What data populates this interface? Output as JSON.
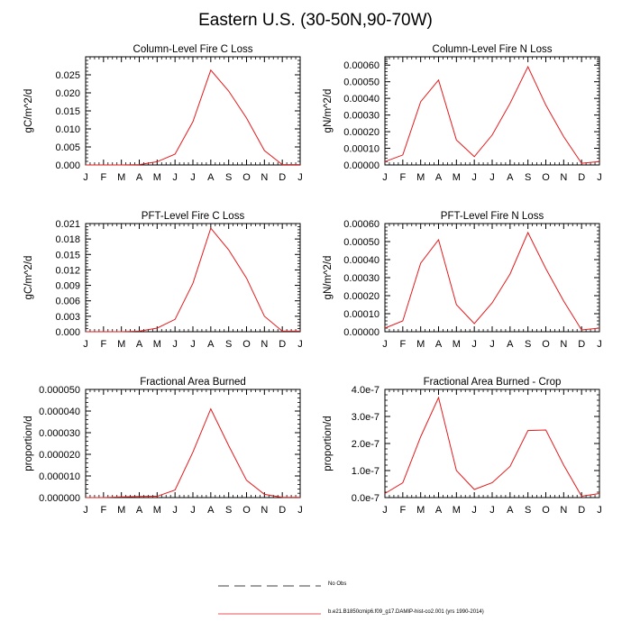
{
  "page_title": "Eastern U.S. (30-50N,90-70W)",
  "colors": {
    "model_line": "#e41a1c",
    "obs_line": "#000000",
    "axis": "#000000"
  },
  "legend": {
    "obs_label": "No Obs",
    "model_label": "b.e21.B1850cmip6.f09_g17.DAMIP-hist-co2.001 (yrs 1990-2014)"
  },
  "chart_data": [
    {
      "type": "line",
      "title": "Column-Level Fire C Loss",
      "ylabel": "gC/m^2/d",
      "x": [
        "J",
        "F",
        "M",
        "A",
        "M",
        "J",
        "J",
        "A",
        "S",
        "O",
        "N",
        "D",
        "J"
      ],
      "ylim": [
        0,
        0.03
      ],
      "yticks": [
        0,
        0.005,
        0.01,
        0.015,
        0.02,
        0.025
      ],
      "ytick_labels": [
        "0.000",
        "0.005",
        "0.010",
        "0.015",
        "0.020",
        "0.025"
      ],
      "series": [
        {
          "values": [
            0,
            0,
            0,
            0.0001,
            0.0009,
            0.003,
            0.012,
            0.0263,
            0.0205,
            0.013,
            0.004,
            0.0001,
            0.0001
          ]
        }
      ]
    },
    {
      "type": "line",
      "title": "Column-Level Fire N Loss",
      "ylabel": "gN/m^2/d",
      "x": [
        "J",
        "F",
        "M",
        "A",
        "M",
        "J",
        "J",
        "A",
        "S",
        "O",
        "N",
        "D",
        "J"
      ],
      "ylim": [
        0,
        0.00065
      ],
      "yticks": [
        0,
        0.0001,
        0.0002,
        0.0003,
        0.0004,
        0.0005,
        0.0006
      ],
      "ytick_labels": [
        "0.00000",
        "0.00010",
        "0.00020",
        "0.00030",
        "0.00040",
        "0.00050",
        "0.00060"
      ],
      "series": [
        {
          "values": [
            2e-05,
            6e-05,
            0.00038,
            0.00051,
            0.00015,
            5e-05,
            0.00018,
            0.00037,
            0.00059,
            0.00036,
            0.00017,
            1e-05,
            2e-05
          ]
        }
      ]
    },
    {
      "type": "line",
      "title": "PFT-Level Fire C Loss",
      "ylabel": "gC/m^2/d",
      "x": [
        "J",
        "F",
        "M",
        "A",
        "M",
        "J",
        "J",
        "A",
        "S",
        "O",
        "N",
        "D",
        "J"
      ],
      "ylim": [
        0,
        0.021
      ],
      "yticks": [
        0,
        0.003,
        0.006,
        0.009,
        0.012,
        0.015,
        0.018,
        0.021
      ],
      "ytick_labels": [
        "0.000",
        "0.003",
        "0.006",
        "0.009",
        "0.012",
        "0.015",
        "0.018",
        "0.021"
      ],
      "series": [
        {
          "values": [
            0,
            0,
            0,
            0.0001,
            0.0007,
            0.0024,
            0.0094,
            0.0201,
            0.0159,
            0.0104,
            0.003,
            0.0001,
            0.0001
          ]
        }
      ]
    },
    {
      "type": "line",
      "title": "PFT-Level Fire N Loss",
      "ylabel": "gN/m^2/d",
      "x": [
        "J",
        "F",
        "M",
        "A",
        "M",
        "J",
        "J",
        "A",
        "S",
        "O",
        "N",
        "D",
        "J"
      ],
      "ylim": [
        0,
        0.0006
      ],
      "yticks": [
        0,
        0.0001,
        0.0002,
        0.0003,
        0.0004,
        0.0005,
        0.0006
      ],
      "ytick_labels": [
        "0.00000",
        "0.00010",
        "0.00020",
        "0.00030",
        "0.00040",
        "0.00050",
        "0.00060"
      ],
      "series": [
        {
          "values": [
            2e-05,
            6e-05,
            0.00038,
            0.00051,
            0.00015,
            4.5e-05,
            0.00016,
            0.00032,
            0.00055,
            0.00035,
            0.00017,
            1e-05,
            2e-05
          ]
        }
      ]
    },
    {
      "type": "line",
      "title": "Fractional Area Burned",
      "ylabel": "proportion/d",
      "x": [
        "J",
        "F",
        "M",
        "A",
        "M",
        "J",
        "J",
        "A",
        "S",
        "O",
        "N",
        "D",
        "J"
      ],
      "ylim": [
        0,
        5e-05
      ],
      "yticks": [
        0,
        1e-05,
        2e-05,
        3e-05,
        4e-05,
        5e-05
      ],
      "ytick_labels": [
        "0.000000",
        "0.000010",
        "0.000020",
        "0.000030",
        "0.000040",
        "0.000050"
      ],
      "series": [
        {
          "values": [
            0,
            0,
            3e-07,
            5e-07,
            6e-07,
            3.5e-06,
            2.1e-05,
            4.1e-05,
            2.4e-05,
            8e-06,
            1.5e-06,
            1e-07,
            1e-07
          ]
        }
      ]
    },
    {
      "type": "line",
      "title": "Fractional Area Burned - Crop",
      "ylabel": "proportion/d",
      "x": [
        "J",
        "F",
        "M",
        "A",
        "M",
        "J",
        "J",
        "A",
        "S",
        "O",
        "N",
        "D",
        "J"
      ],
      "ylim": [
        0,
        4e-07
      ],
      "yticks": [
        0,
        1e-07,
        2e-07,
        3e-07,
        4e-07
      ],
      "ytick_labels": [
        "0.0e-7",
        "1.0e-7",
        "2.0e-7",
        "3.0e-7",
        "4.0e-7"
      ],
      "series": [
        {
          "values": [
            1.5e-08,
            5.5e-08,
            2.25e-07,
            3.7e-07,
            1e-07,
            3e-08,
            5.5e-08,
            1.15e-07,
            2.48e-07,
            2.5e-07,
            1.2e-07,
            5e-09,
            1.5e-08
          ]
        }
      ]
    }
  ]
}
